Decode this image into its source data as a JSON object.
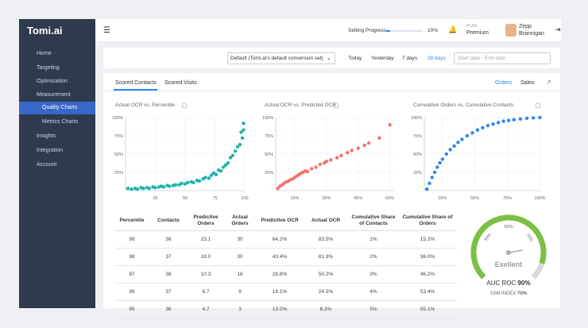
{
  "sidebar": {
    "logo": "Tomi.ai",
    "menu": [
      "Home",
      "Targeting",
      "Optimization",
      "Measurement",
      "Quality Charts",
      "Metrics Charts",
      "Insights",
      "Integration",
      "Account"
    ]
  },
  "topbar": {
    "progress_label": "Setting Progress",
    "progress_value": 10,
    "progress_value_label": "10%",
    "plan_label": "PLAN",
    "plan": "Premium",
    "user_first": "Zepp",
    "user_last": "Brannigan"
  },
  "filters": {
    "conversion_set": "Default (Tomi.ai's default conversion set)",
    "ranges": [
      "Today",
      "Yesterday",
      "7 days",
      "28 days"
    ],
    "date_placeholder": "Start date - End date"
  },
  "tabs": {
    "left": [
      "Scored Contacts",
      "Scored Visits"
    ],
    "right": [
      "Orders",
      "Sales"
    ]
  },
  "chart_data": [
    {
      "type": "scatter",
      "title": "Actual OCR vs. Percentile",
      "color": "#1fb5a8",
      "xlim": [
        0,
        100
      ],
      "ylim": [
        0,
        100
      ],
      "xticks": [
        25,
        50,
        75,
        100
      ],
      "yticks": [
        {
          "value": 25,
          "label": "25%"
        },
        {
          "value": 50,
          "label": "50%"
        },
        {
          "value": 75,
          "label": "75%"
        },
        {
          "value": 100,
          "label": "100%"
        }
      ],
      "x": [
        2,
        5,
        8,
        10,
        13,
        15,
        18,
        20,
        23,
        25,
        28,
        30,
        32,
        35,
        37,
        40,
        42,
        45,
        47,
        50,
        52,
        55,
        57,
        60,
        62,
        65,
        67,
        70,
        72,
        74,
        76,
        78,
        80,
        82,
        84,
        86,
        88,
        90,
        92,
        94,
        96,
        97,
        98,
        99,
        99
      ],
      "values": [
        3,
        2,
        3,
        2,
        4,
        3,
        4,
        3,
        5,
        4,
        5,
        6,
        5,
        7,
        6,
        7,
        8,
        8,
        10,
        9,
        11,
        12,
        11,
        14,
        13,
        16,
        18,
        17,
        21,
        24,
        22,
        28,
        27,
        32,
        35,
        38,
        45,
        48,
        54,
        60,
        63,
        80,
        72,
        83,
        92
      ]
    },
    {
      "type": "scatter",
      "title": "Actual OCR vs. Predicted OCR",
      "color": "#f4736b",
      "xlim": [
        6,
        62
      ],
      "ylim": [
        0,
        100
      ],
      "xticks": [
        {
          "value": 15,
          "label": "15%"
        },
        {
          "value": 30,
          "label": "30%"
        },
        {
          "value": 45,
          "label": "45%"
        },
        {
          "value": 60,
          "label": "60%"
        }
      ],
      "yticks": [
        {
          "value": 25,
          "label": "25%"
        },
        {
          "value": 50,
          "label": "50%"
        },
        {
          "value": 75,
          "label": "75%"
        },
        {
          "value": 100,
          "label": "100%"
        }
      ],
      "x": [
        7,
        8,
        9,
        10,
        11,
        12,
        13,
        14,
        15,
        16,
        17,
        18,
        19,
        20,
        21,
        23,
        25,
        27,
        29,
        30,
        32,
        35,
        37,
        40,
        42,
        45,
        48,
        50,
        55,
        60
      ],
      "values": [
        3,
        6,
        8,
        10,
        12,
        13,
        15,
        16,
        18,
        20,
        22,
        24,
        25,
        27,
        26,
        30,
        32,
        36,
        38,
        40,
        42,
        45,
        48,
        52,
        55,
        58,
        62,
        65,
        72,
        90
      ]
    },
    {
      "type": "scatter",
      "title": "Cumulative Orders vs. Cumulative Contacts",
      "color": "#2f86ea",
      "xlim": [
        11,
        101
      ],
      "ylim": [
        0,
        100
      ],
      "xticks": [
        {
          "value": 25,
          "label": "25%"
        },
        {
          "value": 50,
          "label": "50%"
        },
        {
          "value": 75,
          "label": "75%"
        },
        {
          "value": 100,
          "label": "100%"
        }
      ],
      "yticks": [
        {
          "value": 25,
          "label": "25%"
        },
        {
          "value": 50,
          "label": "50%"
        },
        {
          "value": 75,
          "label": "75%"
        },
        {
          "value": 100,
          "label": "100%"
        }
      ],
      "x": [
        13,
        15,
        17,
        19,
        21,
        23,
        25,
        28,
        31,
        34,
        37,
        40,
        44,
        48,
        52,
        56,
        60,
        64,
        68,
        72,
        76,
        80,
        85,
        90,
        95,
        100
      ],
      "values": [
        2,
        10,
        18,
        25,
        32,
        38,
        43,
        50,
        56,
        61,
        66,
        70,
        75,
        79,
        83,
        86,
        89,
        91,
        93,
        95,
        96,
        97,
        98,
        99,
        99.5,
        100
      ]
    }
  ],
  "table": {
    "headers": [
      "Percentile",
      "Contacts",
      "Predicitve Orders",
      "Actual Orders",
      "Predictive OCR",
      "Actual OCR",
      "Cumulative Share of Contacts",
      "Cumulative Share of Orders"
    ],
    "rows": [
      [
        "99",
        "36",
        "23.1",
        "30",
        "64.2%",
        "83.5%",
        "1%",
        "15.2%"
      ],
      [
        "98",
        "37",
        "18.0",
        "30",
        "43.4%",
        "81.3%",
        "2%",
        "36.0%"
      ],
      [
        "97",
        "36",
        "10.3",
        "18",
        "28.8%",
        "50.2%",
        "3%",
        "46.2%"
      ],
      [
        "96",
        "37",
        "6.7",
        "9",
        "18.1%",
        "24.5%",
        "4%",
        "53.4%"
      ],
      [
        "95",
        "36",
        "4.7",
        "3",
        "13.0%",
        "8.3%",
        "5%",
        "55.1%"
      ]
    ]
  },
  "gauge": {
    "value": 90,
    "ticks": [
      {
        "value": 30,
        "label": "30%"
      },
      {
        "value": 50,
        "label": "50%"
      },
      {
        "value": 70,
        "label": "70%"
      }
    ],
    "rating": "Exellent",
    "auc_label": "AUC ROC",
    "auc_value": "90%",
    "gini_label": "GINI INDEX",
    "gini_value": "70%"
  }
}
